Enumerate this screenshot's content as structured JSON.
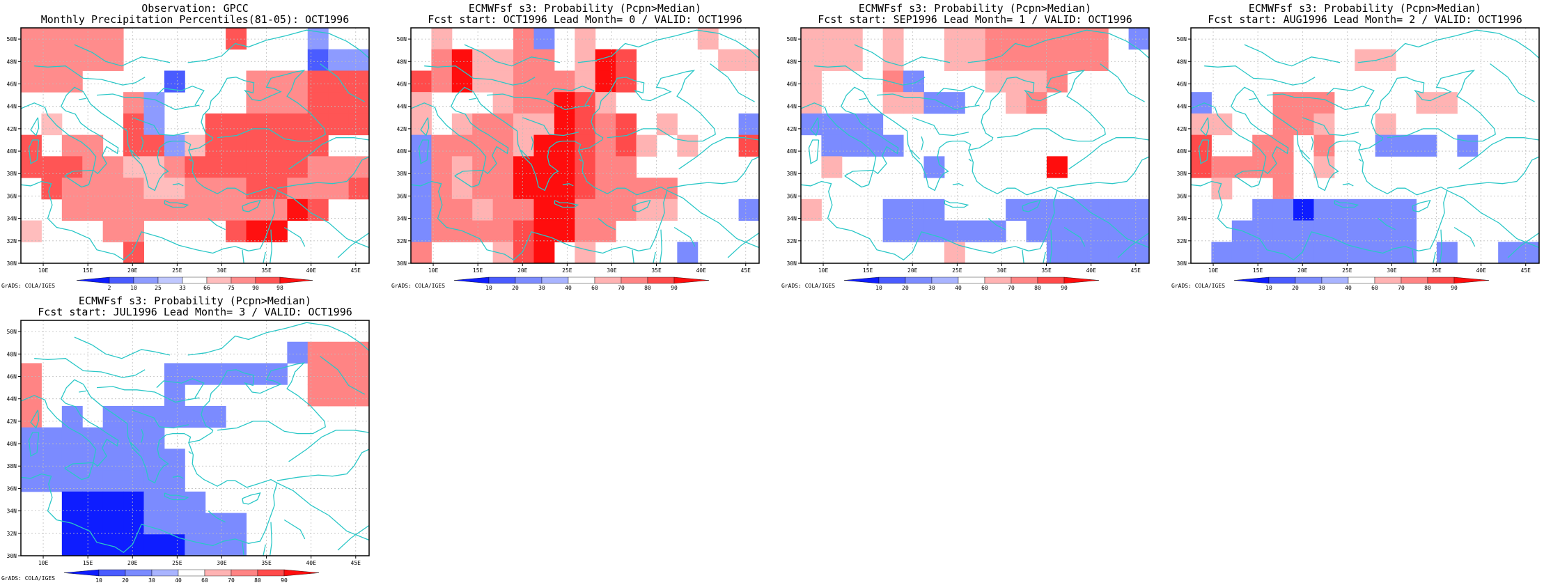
{
  "figure": "monthly precipitation percentile maps",
  "lat_ticks": [
    "30N",
    "32N",
    "34N",
    "36N",
    "38N",
    "40N",
    "42N",
    "44N",
    "46N",
    "48N",
    "50N"
  ],
  "lon_ticks": [
    "10E",
    "15E",
    "20E",
    "25E",
    "30E",
    "35E",
    "40E",
    "45E"
  ],
  "credit": "GrADS: COLA/IGES",
  "colors": {
    "coast": "#2ac7c7",
    "scale_obs": [
      "#0e1dff",
      "#4a5cff",
      "#8d9bff",
      "#c0c8ff",
      "#ffffff",
      "#ffbdbd",
      "#ff8c8c",
      "#ff5555",
      "#ff1010"
    ],
    "scale_prob": [
      "#0e1dff",
      "#4a5cff",
      "#7b8bff",
      "#a9b4ff",
      "#ffffff",
      "#ffb3b3",
      "#ff8484",
      "#ff4b4b",
      "#ff0d0d"
    ]
  },
  "panels": [
    {
      "title1": "Observation: GPCC",
      "title2": "Monthly Precipitation Percentiles(81-05): OCT1996",
      "cbar_labels": [
        "2",
        "10",
        "25",
        "33",
        "66",
        "75",
        "90",
        "98"
      ],
      "grid": [
        "77777055008000300",
        "77777000000000233",
        "77700002000777888",
        "00000730000777888",
        "06000830088888888",
        "80770883688888800",
        "88877667888888777",
        "08777766777887778",
        "00777777777779800",
        "60007700008990000",
        "00000800000000000"
      ]
    },
    {
      "title1": "ECMWFsf s3: Probability (Pcpn>Median)",
      "title2": "Fcst start: OCT1996  Lead Month= 0 / VALID: OCT1996",
      "cbar_labels": [
        "10",
        "20",
        "30",
        "40",
        "60",
        "70",
        "80",
        "90"
      ],
      "grid": [
        "06000730600000600",
        "07966770698000066",
        "87966777698000000",
        "60006779860000000",
        "60677669878060003",
        "37777699878606008",
        "37677999877000000",
        "37677999877770000",
        "37767799777660003",
        "37777899770000000",
        "70006890600003000"
      ]
    },
    {
      "title1": "ECMWFsf s3: Probability (Pcpn>Median)",
      "title2": "Fcst start: SEP1996  Lead Month= 1 / VALID: OCT1996",
      "cbar_labels": [
        "10",
        "20",
        "30",
        "40",
        "60",
        "70",
        "80",
        "90"
      ],
      "grid": [
        "66606006677777703",
        "66606006677777700",
        "60007300066670000",
        "60006633006700000",
        "33330000000000000",
        "03333000000000000",
        "06000030000090000",
        "00000000000000000",
        "60003330003333333",
        "00003333330333333",
        "00000006000033333"
      ]
    },
    {
      "title1": "ECMWFsf s3: Probability (Pcpn>Median)",
      "title2": "Fcst start: AUG1996  Lead Month= 2 / VALID: OCT1996",
      "cbar_labels": [
        "10",
        "20",
        "30",
        "40",
        "60",
        "70",
        "80",
        "90"
      ],
      "grid": [
        "00000000000000000",
        "00000000660000000",
        "00000000000000000",
        "30007770000660000",
        "66007760060000000",
        "80077070033303000",
        "87777060000000000",
        "06007000000000000",
        "00033133333000000",
        "00333333333000000",
        "03333333333030033"
      ]
    },
    {
      "title1": "ECMWFsf s3: Probability (Pcpn>Median)",
      "title2": "Fcst start: JUL1996  Lead Month= 3 / VALID: OCT1996",
      "cbar_labels": [
        "10",
        "20",
        "30",
        "40",
        "60",
        "70",
        "80",
        "90"
      ],
      "grid": [
        "00000000000000000",
        "00000000000003777",
        "70000003333330777",
        "70000003000000777",
        "70303333330000000",
        "33333330000000000",
        "33333333000000000",
        "33333333000000000",
        "00111133300000000",
        "00111133333000000",
        "00111111333000000"
      ]
    }
  ]
}
